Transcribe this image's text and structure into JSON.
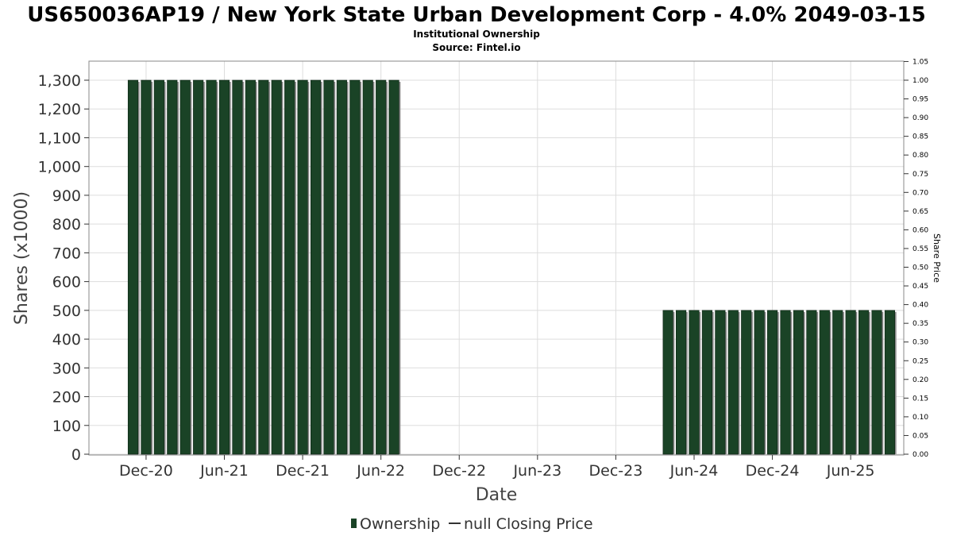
{
  "title": "US650036AP19 / New York State Urban Development Corp - 4.0% 2049-03-15",
  "subtitle": "Institutional Ownership",
  "source": "Source: Fintel.io",
  "colors": {
    "bar": "#1a4326",
    "bar_edge": "#0d2414",
    "bar_shadow": "#8c8c8c",
    "grid": "#dddddd",
    "plot_border": "#888888"
  },
  "chart_data": {
    "type": "bar",
    "title": "US650036AP19 / New York State Urban Development Corp - 4.0% 2049-03-15",
    "subtitle": "Institutional Ownership",
    "xlabel": "Date",
    "ylabel": "Shares (x1000)",
    "y2label": "Share Price",
    "ylim": [
      0,
      1350
    ],
    "y2lim": [
      0,
      1.05
    ],
    "yticks": [
      "0",
      "100",
      "200",
      "300",
      "400",
      "500",
      "600",
      "700",
      "800",
      "900",
      "1,000",
      "1,100",
      "1,200",
      "1,300"
    ],
    "y2ticks": [
      "0.00",
      "0.05",
      "0.10",
      "0.15",
      "0.20",
      "0.25",
      "0.30",
      "0.35",
      "0.40",
      "0.45",
      "0.50",
      "0.55",
      "0.60",
      "0.65",
      "0.70",
      "0.75",
      "0.80",
      "0.85",
      "0.90",
      "0.95",
      "1.00",
      "1.05"
    ],
    "xticks": [
      "Dec-20",
      "Jun-21",
      "Dec-21",
      "Jun-22",
      "Dec-22",
      "Jun-23",
      "Dec-23",
      "Jun-24",
      "Dec-24",
      "Jun-25"
    ],
    "grid": true,
    "legend_position": "bottom",
    "legend": [
      "Ownership",
      "null Closing Price"
    ],
    "series": [
      {
        "name": "Ownership",
        "groups": [
          {
            "start": "2020-11",
            "months": 21,
            "value": 1300
          },
          {
            "start": "2024-04",
            "months": 18,
            "value": 500
          }
        ]
      }
    ]
  }
}
